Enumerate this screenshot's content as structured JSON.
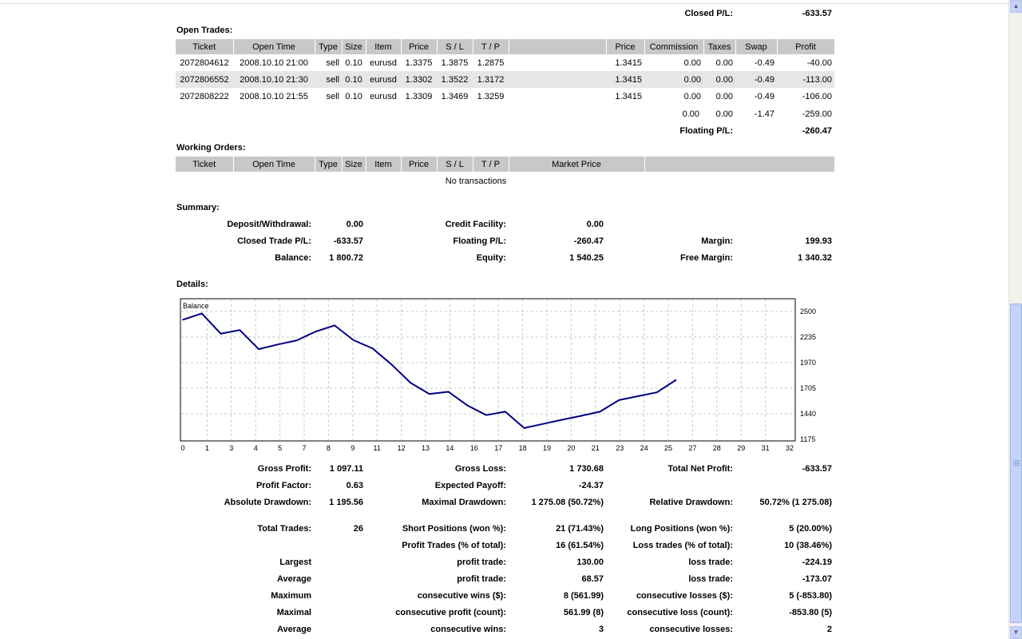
{
  "closed_pl": {
    "label": "Closed P/L:",
    "value": "-633.57"
  },
  "open_trades": {
    "title": "Open Trades:",
    "headers": [
      "Ticket",
      "Open Time",
      "Type",
      "Size",
      "Item",
      "Price",
      "S / L",
      "T / P",
      "",
      "Price",
      "Commission",
      "Taxes",
      "Swap",
      "Profit"
    ],
    "rows": [
      [
        "2072804612",
        "2008.10.10 21:00",
        "sell",
        "0.10",
        "eurusd",
        "1.3375",
        "1.3875",
        "1.2875",
        "",
        "1.3415",
        "0.00",
        "0.00",
        "-0.49",
        "-40.00"
      ],
      [
        "2072806552",
        "2008.10.10 21:30",
        "sell",
        "0.10",
        "eurusd",
        "1.3302",
        "1.3522",
        "1.3172",
        "",
        "1.3415",
        "0.00",
        "0.00",
        "-0.49",
        "-113.00"
      ],
      [
        "2072808222",
        "2008.10.10 21:55",
        "sell",
        "0.10",
        "eurusd",
        "1.3309",
        "1.3469",
        "1.3259",
        "",
        "1.3415",
        "0.00",
        "0.00",
        "-0.49",
        "-106.00"
      ]
    ],
    "totals": {
      "commission": "0.00",
      "taxes": "0.00",
      "swap": "-1.47",
      "profit": "-259.00"
    },
    "floating": {
      "label": "Floating P/L:",
      "value": "-260.47"
    }
  },
  "working_orders": {
    "title": "Working Orders:",
    "headers": [
      "Ticket",
      "Open Time",
      "Type",
      "Size",
      "Item",
      "Price",
      "S / L",
      "T / P",
      "Market Price",
      ""
    ],
    "empty": "No transactions"
  },
  "summary": {
    "title": "Summary:",
    "deposit_label": "Deposit/Withdrawal:",
    "deposit": "0.00",
    "credit_label": "Credit Facility:",
    "credit": "0.00",
    "closed_trade_label": "Closed Trade P/L:",
    "closed_trade": "-633.57",
    "floating_label": "Floating P/L:",
    "floating": "-260.47",
    "margin_label": "Margin:",
    "margin": "199.93",
    "balance_label": "Balance:",
    "balance": "1 800.72",
    "equity_label": "Equity:",
    "equity": "1 540.25",
    "free_margin_label": "Free Margin:",
    "free_margin": "1 340.32"
  },
  "details": {
    "title": "Details:",
    "gross_profit_label": "Gross Profit:",
    "gross_profit": "1 097.11",
    "gross_loss_label": "Gross Loss:",
    "gross_loss": "1 730.68",
    "total_net_label": "Total Net Profit:",
    "total_net": "-633.57",
    "profit_factor_label": "Profit Factor:",
    "profit_factor": "0.63",
    "expected_payoff_label": "Expected Payoff:",
    "expected_payoff": "-24.37",
    "abs_dd_label": "Absolute Drawdown:",
    "abs_dd": "1 195.56",
    "max_dd_label": "Maximal Drawdown:",
    "max_dd": "1 275.08 (50.72%)",
    "rel_dd_label": "Relative Drawdown:",
    "rel_dd": "50.72% (1 275.08)",
    "total_trades_label": "Total Trades:",
    "total_trades": "26",
    "short_label": "Short Positions (won %):",
    "short": "21 (71.43%)",
    "long_label": "Long Positions (won %):",
    "long": "5 (20.00%)",
    "profit_trades_label": "Profit Trades (% of total):",
    "profit_trades": "16 (61.54%)",
    "loss_trades_label": "Loss trades (% of total):",
    "loss_trades": "10 (38.46%)",
    "largest_label": "Largest",
    "largest_profit_label": "profit trade:",
    "largest_profit": "130.00",
    "largest_loss_label": "loss trade:",
    "largest_loss": "-224.19",
    "average_label": "Average",
    "average_profit_label": "profit trade:",
    "average_profit": "68.57",
    "average_loss_label": "loss trade:",
    "average_loss": "-173.07",
    "maximum_label": "Maximum",
    "max_wins_label": "consecutive wins ($):",
    "max_wins": "8 (561.99)",
    "max_losses_label": "consecutive losses ($):",
    "max_losses": "5 (-853.80)",
    "maximal_label": "Maximal",
    "maximal_profit_label": "consecutive profit (count):",
    "maximal_profit": "561.99 (8)",
    "maximal_loss_label": "consecutive loss (count):",
    "maximal_loss": "-853.80 (5)",
    "avg2_label": "Average",
    "avg_wins_label": "consecutive wins:",
    "avg_wins": "3",
    "avg_losses_label": "consecutive losses:",
    "avg_losses": "2"
  },
  "chart_data": {
    "type": "line",
    "title": "Balance",
    "xlim": [
      0,
      32
    ],
    "ylim": [
      1175,
      2500
    ],
    "x_ticks": [
      "0",
      "1",
      "3",
      "4",
      "5",
      "7",
      "8",
      "9",
      "11",
      "12",
      "13",
      "14",
      "16",
      "17",
      "18",
      "19",
      "20",
      "21",
      "23",
      "24",
      "25",
      "27",
      "28",
      "29",
      "31",
      "32"
    ],
    "y_ticks": [
      "2500",
      "2235",
      "1970",
      "1705",
      "1440",
      "1175"
    ],
    "grid": true,
    "series": [
      {
        "color": "#000080",
        "x": [
          0,
          1,
          2,
          3,
          4,
          5,
          6,
          7,
          8,
          9,
          10,
          11,
          12,
          13,
          14,
          15,
          16,
          17,
          18,
          19,
          20,
          21,
          22,
          23,
          24,
          25,
          26
        ],
        "y": [
          2415,
          2480,
          2270,
          2308,
          2110,
          2158,
          2200,
          2292,
          2356,
          2203,
          2118,
          1952,
          1762,
          1645,
          1668,
          1527,
          1426,
          1462,
          1292,
          1335,
          1378,
          1418,
          1462,
          1582,
          1622,
          1662,
          1790
        ]
      }
    ]
  },
  "scrollbar": {
    "up": "▲",
    "down": "▼"
  }
}
